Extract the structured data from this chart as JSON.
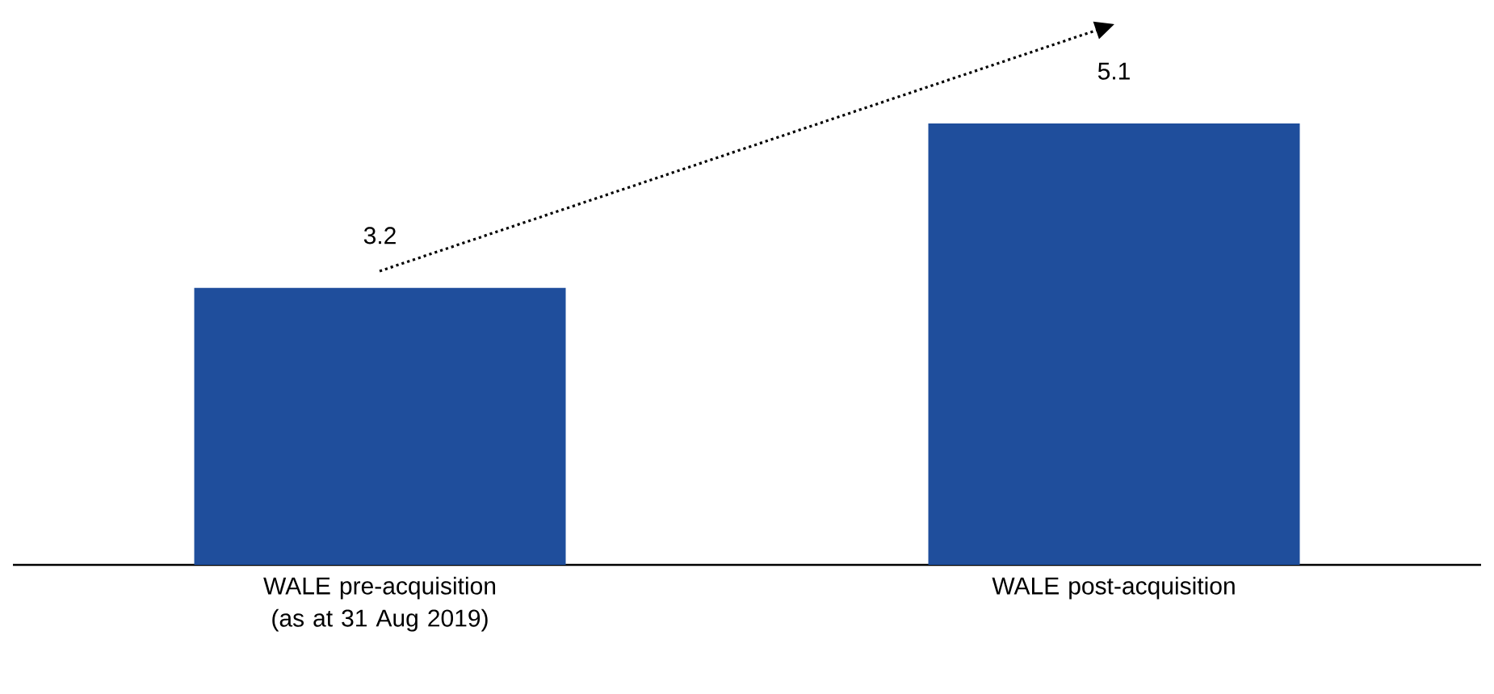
{
  "chart_data": {
    "type": "bar",
    "categories": [
      "WALE pre-acquisition (as at 31 Aug 2019)",
      "WALE post-acquisition"
    ],
    "values": [
      3.2,
      5.1
    ],
    "color": "#1f4e9c",
    "data_labels": true,
    "tick_labels": "x",
    "grid": false
  }
}
